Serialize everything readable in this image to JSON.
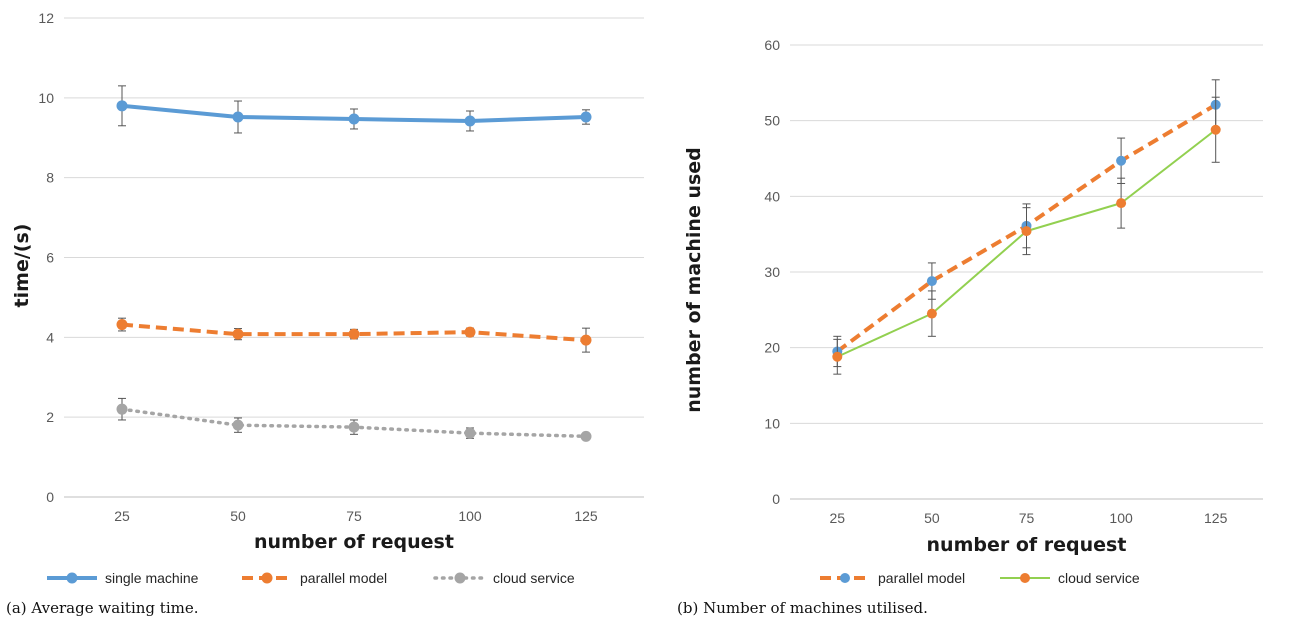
{
  "chart_data": [
    {
      "type": "line",
      "caption": "(a) Average waiting time.",
      "xlabel": "number of request",
      "ylabel": "time/(s)",
      "categories": [
        "25",
        "50",
        "75",
        "100",
        "125"
      ],
      "ylim": [
        0,
        12
      ],
      "yticks": [
        0,
        2,
        4,
        6,
        8,
        10,
        12
      ],
      "grid": true,
      "legend_position": "bottom",
      "series": [
        {
          "name": "single machine",
          "color": "#5B9BD5",
          "dash": "solid",
          "values": [
            9.8,
            9.52,
            9.47,
            9.42,
            9.52
          ],
          "errors": [
            0.5,
            0.4,
            0.25,
            0.25,
            0.18
          ]
        },
        {
          "name": "parallel model",
          "color": "#ED7D31",
          "dash": "dashed",
          "values": [
            4.32,
            4.08,
            4.08,
            4.13,
            3.93
          ],
          "errors": [
            0.16,
            0.14,
            0.12,
            0.1,
            0.3
          ]
        },
        {
          "name": "cloud service",
          "color": "#A5A5A5",
          "dash": "dotted",
          "values": [
            2.2,
            1.8,
            1.75,
            1.6,
            1.52
          ],
          "errors": [
            0.27,
            0.18,
            0.18,
            0.13,
            0.06
          ]
        }
      ]
    },
    {
      "type": "line",
      "caption": "(b) Number of machines utilised.",
      "xlabel": "number of request",
      "ylabel": "number of machine used",
      "categories": [
        "25",
        "50",
        "75",
        "100",
        "125"
      ],
      "ylim": [
        0,
        60
      ],
      "yticks": [
        0,
        10,
        20,
        30,
        40,
        50,
        60
      ],
      "grid": true,
      "legend_position": "bottom",
      "series": [
        {
          "name": "parallel model",
          "color": "#ED7D31",
          "marker_color": "#5B9BD5",
          "dash": "dashed",
          "values": [
            19.5,
            28.8,
            36.1,
            44.7,
            52.1
          ],
          "errors": [
            2,
            2.4,
            2.9,
            3,
            3.3
          ]
        },
        {
          "name": "cloud service",
          "color": "#92D050",
          "marker_color": "#ED7D31",
          "dash": "solid",
          "values": [
            18.8,
            24.5,
            35.4,
            39.1,
            48.8
          ],
          "errors": [
            2.3,
            3,
            3.1,
            3.3,
            4.3
          ]
        }
      ]
    }
  ]
}
